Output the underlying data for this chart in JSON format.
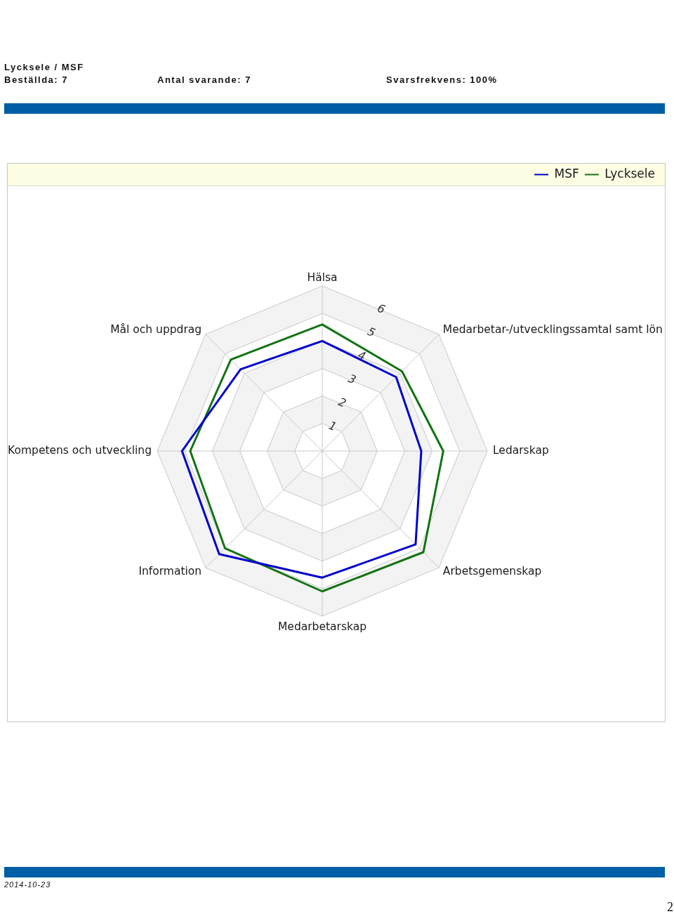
{
  "chart_data": {
    "type": "radar",
    "title": "Lycksele / MSF",
    "categories": [
      "Hälsa",
      "Medarbetar-/utvecklingssamtal samt lön",
      "Ledarskap",
      "Arbetsgemenskap",
      "Medarbetarskap",
      "Information",
      "Kompetens och utveckling",
      "Mål och uppdrag"
    ],
    "series": [
      {
        "name": "MSF",
        "color": "#0000cd",
        "values": [
          4.0,
          3.8,
          3.6,
          4.8,
          4.6,
          5.3,
          5.1,
          4.2
        ]
      },
      {
        "name": "Lycksele",
        "color": "#137313",
        "values": [
          4.6,
          4.1,
          4.4,
          5.2,
          5.1,
          5.0,
          4.8,
          4.7
        ]
      }
    ],
    "ylim": [
      0,
      6
    ],
    "yticks": [
      1,
      2,
      3,
      4,
      5,
      6
    ],
    "grid": true,
    "legend": "top right",
    "marker": "none",
    "line_style": "solid",
    "annotations": [
      "Beställda: 7",
      "Antal svarande: 7",
      "Svarsfrekvens: 100%",
      "2014-10-23",
      "2"
    ]
  }
}
